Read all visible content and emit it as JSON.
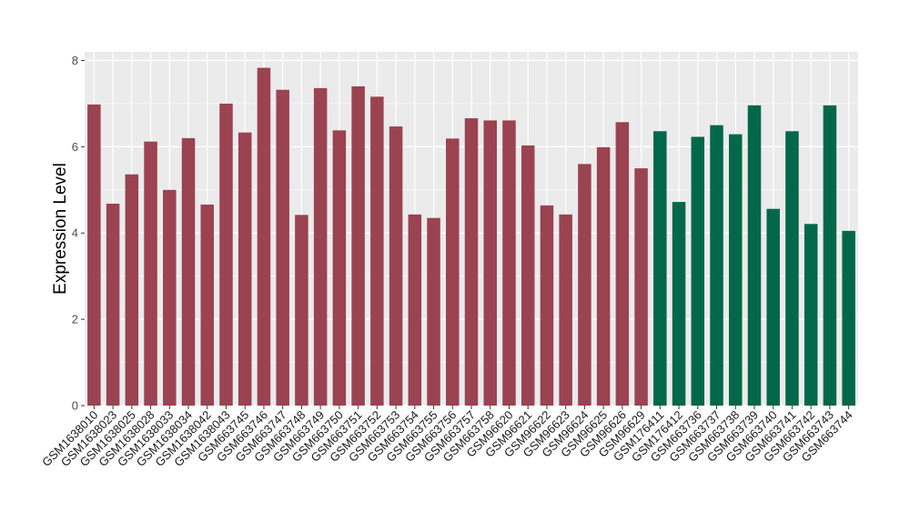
{
  "chart_data": {
    "type": "bar",
    "title": "",
    "xlabel": "",
    "ylabel": "Expression Level",
    "ylim": [
      0,
      8.2
    ],
    "yticks": [
      0,
      2,
      4,
      6,
      8
    ],
    "grid": true,
    "categories": [
      "GSM1638010",
      "GSM1638023",
      "GSM1638025",
      "GSM1638028",
      "GSM1638033",
      "GSM1638034",
      "GSM1638042",
      "GSM1638043",
      "GSM663745",
      "GSM663746",
      "GSM663747",
      "GSM663748",
      "GSM663749",
      "GSM663750",
      "GSM663751",
      "GSM663752",
      "GSM663753",
      "GSM663754",
      "GSM663755",
      "GSM663756",
      "GSM663757",
      "GSM663758",
      "GSM96620",
      "GSM96621",
      "GSM96622",
      "GSM96623",
      "GSM96624",
      "GSM96625",
      "GSM96626",
      "GSM96629",
      "GSM176411",
      "GSM176412",
      "GSM663736",
      "GSM663737",
      "GSM663738",
      "GSM663739",
      "GSM663740",
      "GSM663741",
      "GSM663742",
      "GSM663743",
      "GSM663744"
    ],
    "values": [
      6.98,
      4.68,
      5.36,
      6.12,
      5.0,
      6.2,
      4.66,
      7.0,
      6.33,
      7.83,
      7.32,
      4.42,
      7.36,
      6.38,
      7.4,
      7.16,
      6.47,
      4.43,
      4.35,
      6.19,
      6.66,
      6.61,
      6.61,
      6.03,
      4.64,
      4.43,
      5.6,
      5.99,
      6.57,
      5.5,
      6.36,
      4.72,
      6.23,
      6.5,
      6.29,
      6.96,
      4.56,
      6.36,
      4.21,
      6.96,
      4.05
    ],
    "group_colors": [
      "#9B4351",
      "#9B4351",
      "#9B4351",
      "#9B4351",
      "#9B4351",
      "#9B4351",
      "#9B4351",
      "#9B4351",
      "#9B4351",
      "#9B4351",
      "#9B4351",
      "#9B4351",
      "#9B4351",
      "#9B4351",
      "#9B4351",
      "#9B4351",
      "#9B4351",
      "#9B4351",
      "#9B4351",
      "#9B4351",
      "#9B4351",
      "#9B4351",
      "#9B4351",
      "#9B4351",
      "#9B4351",
      "#9B4351",
      "#9B4351",
      "#9B4351",
      "#9B4351",
      "#9B4351",
      "#036849",
      "#036849",
      "#036849",
      "#036849",
      "#036849",
      "#036849",
      "#036849",
      "#036849",
      "#036849",
      "#036849",
      "#036849"
    ],
    "panel_background": "#EBEBEB",
    "grid_color": "#FFFFFF"
  }
}
